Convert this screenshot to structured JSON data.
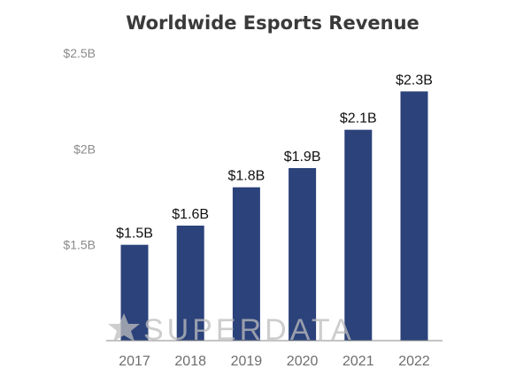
{
  "chart_data": {
    "type": "bar",
    "title": "Worldwide Esports Revenue",
    "categories": [
      "2017",
      "2018",
      "2019",
      "2020",
      "2021",
      "2022"
    ],
    "values": [
      1.5,
      1.6,
      1.8,
      1.9,
      2.1,
      2.3
    ],
    "data_labels": [
      "$1.5B",
      "$1.6B",
      "$1.8B",
      "$1.9B",
      "$2.1B",
      "$2.3B"
    ],
    "unit": "billion USD",
    "yticks": [
      1.5,
      2.0,
      2.5
    ],
    "ytick_labels": [
      "$1.5B",
      "$2B",
      "$2.5B"
    ],
    "ylim": [
      1.0,
      2.5
    ],
    "xlabel": "",
    "ylabel": "",
    "grid": false,
    "bar_color": "#2b427a",
    "watermark": "SUPERDATA"
  }
}
